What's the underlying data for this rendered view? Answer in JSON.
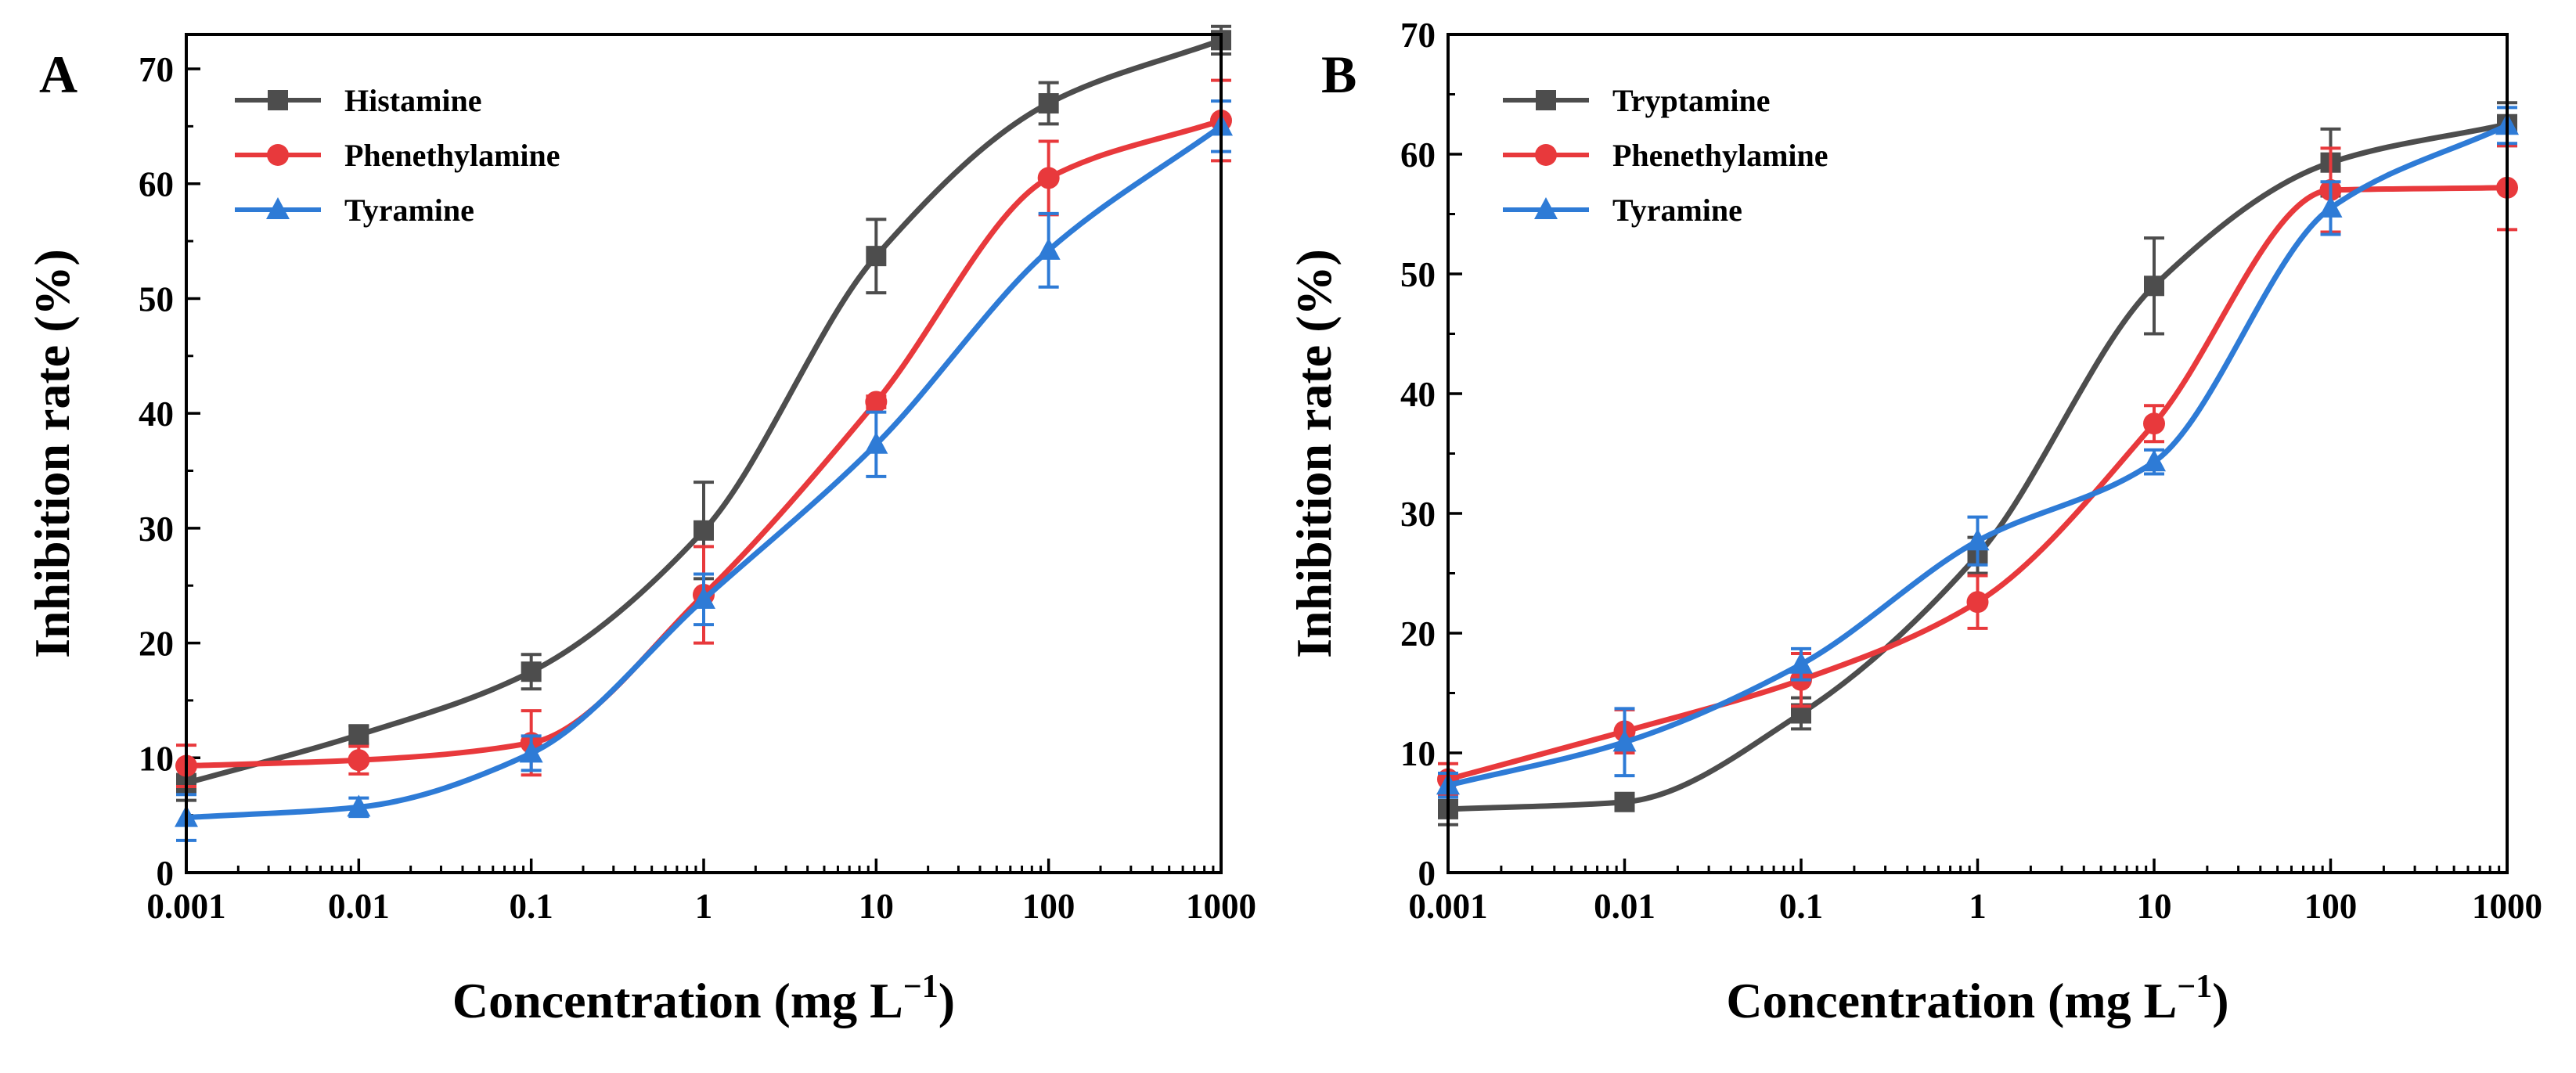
{
  "chart_data": [
    {
      "panel": "A",
      "type": "line",
      "xscale": "log",
      "xlabel": "Concentration (mg L",
      "xlabel_sup": "−1",
      "xlabel_close": ")",
      "ylabel": "Inhibition rate (%)",
      "xlim": [
        0.001,
        1000
      ],
      "ylim": [
        0,
        73
      ],
      "xticks": [
        0.001,
        0.01,
        0.1,
        1,
        10,
        100,
        1000
      ],
      "xtick_labels": [
        "0.001",
        "0.01",
        "0.1",
        "1",
        "10",
        "100",
        "1000"
      ],
      "yticks": [
        0,
        10,
        20,
        30,
        40,
        50,
        60,
        70
      ],
      "ytick_labels": [
        "0",
        "10",
        "20",
        "30",
        "40",
        "50",
        "60",
        "70"
      ],
      "legend_position": "top-left",
      "x": [
        0.001,
        0.01,
        0.1,
        1,
        10,
        100,
        1000
      ],
      "series": [
        {
          "name": "Histamine",
          "color": "#4d4d4d",
          "marker": "square",
          "values": [
            7.8,
            12.0,
            17.5,
            29.8,
            53.7,
            67.0,
            72.5
          ],
          "errors": [
            1.5,
            0.8,
            1.5,
            4.2,
            3.2,
            1.8,
            1.2
          ]
        },
        {
          "name": "Phenethylamine",
          "color": "#e8393c",
          "marker": "circle",
          "values": [
            9.3,
            9.8,
            11.3,
            24.2,
            41.0,
            60.5,
            65.5
          ],
          "errors": [
            1.8,
            1.2,
            2.8,
            4.2,
            0.5,
            3.2,
            3.5
          ]
        },
        {
          "name": "Tyramine",
          "color": "#2e7bd6",
          "marker": "triangle",
          "values": [
            4.8,
            5.7,
            10.4,
            23.8,
            37.3,
            54.2,
            65.0
          ],
          "errors": [
            2.0,
            0.8,
            1.5,
            2.2,
            2.8,
            3.2,
            2.2
          ]
        }
      ]
    },
    {
      "panel": "B",
      "type": "line",
      "xscale": "log",
      "xlabel": "Concentration (mg L",
      "xlabel_sup": "−1",
      "xlabel_close": ")",
      "ylabel": "Inhibition rate (%)",
      "xlim": [
        0.001,
        1000
      ],
      "ylim": [
        0,
        70
      ],
      "xticks": [
        0.001,
        0.01,
        0.1,
        1,
        10,
        100,
        1000
      ],
      "xtick_labels": [
        "0.001",
        "0.01",
        "0.1",
        "1",
        "10",
        "100",
        "1000"
      ],
      "yticks": [
        0,
        10,
        20,
        30,
        40,
        50,
        60,
        70
      ],
      "ytick_labels": [
        "0",
        "10",
        "20",
        "30",
        "40",
        "50",
        "60",
        "70"
      ],
      "legend_position": "top-left",
      "x": [
        0.001,
        0.01,
        0.1,
        1,
        10,
        100,
        1000
      ],
      "series": [
        {
          "name": "Tryptamine",
          "color": "#4d4d4d",
          "marker": "square",
          "values": [
            5.3,
            5.9,
            13.3,
            26.5,
            49.0,
            59.3,
            62.5
          ],
          "errors": [
            1.3,
            0.5,
            1.3,
            1.5,
            4.0,
            2.8,
            1.8
          ]
        },
        {
          "name": "Phenethylamine",
          "color": "#e8393c",
          "marker": "circle",
          "values": [
            7.8,
            11.8,
            16.1,
            22.6,
            37.5,
            57.0,
            57.2
          ],
          "errors": [
            1.3,
            1.8,
            2.2,
            2.2,
            1.5,
            3.5,
            3.5
          ]
        },
        {
          "name": "Tyramine",
          "color": "#2e7bd6",
          "marker": "triangle",
          "values": [
            7.3,
            10.9,
            17.4,
            27.7,
            34.3,
            55.5,
            62.4
          ],
          "errors": [
            1.0,
            2.8,
            1.3,
            2.0,
            1.0,
            2.2,
            1.5
          ]
        }
      ]
    }
  ]
}
